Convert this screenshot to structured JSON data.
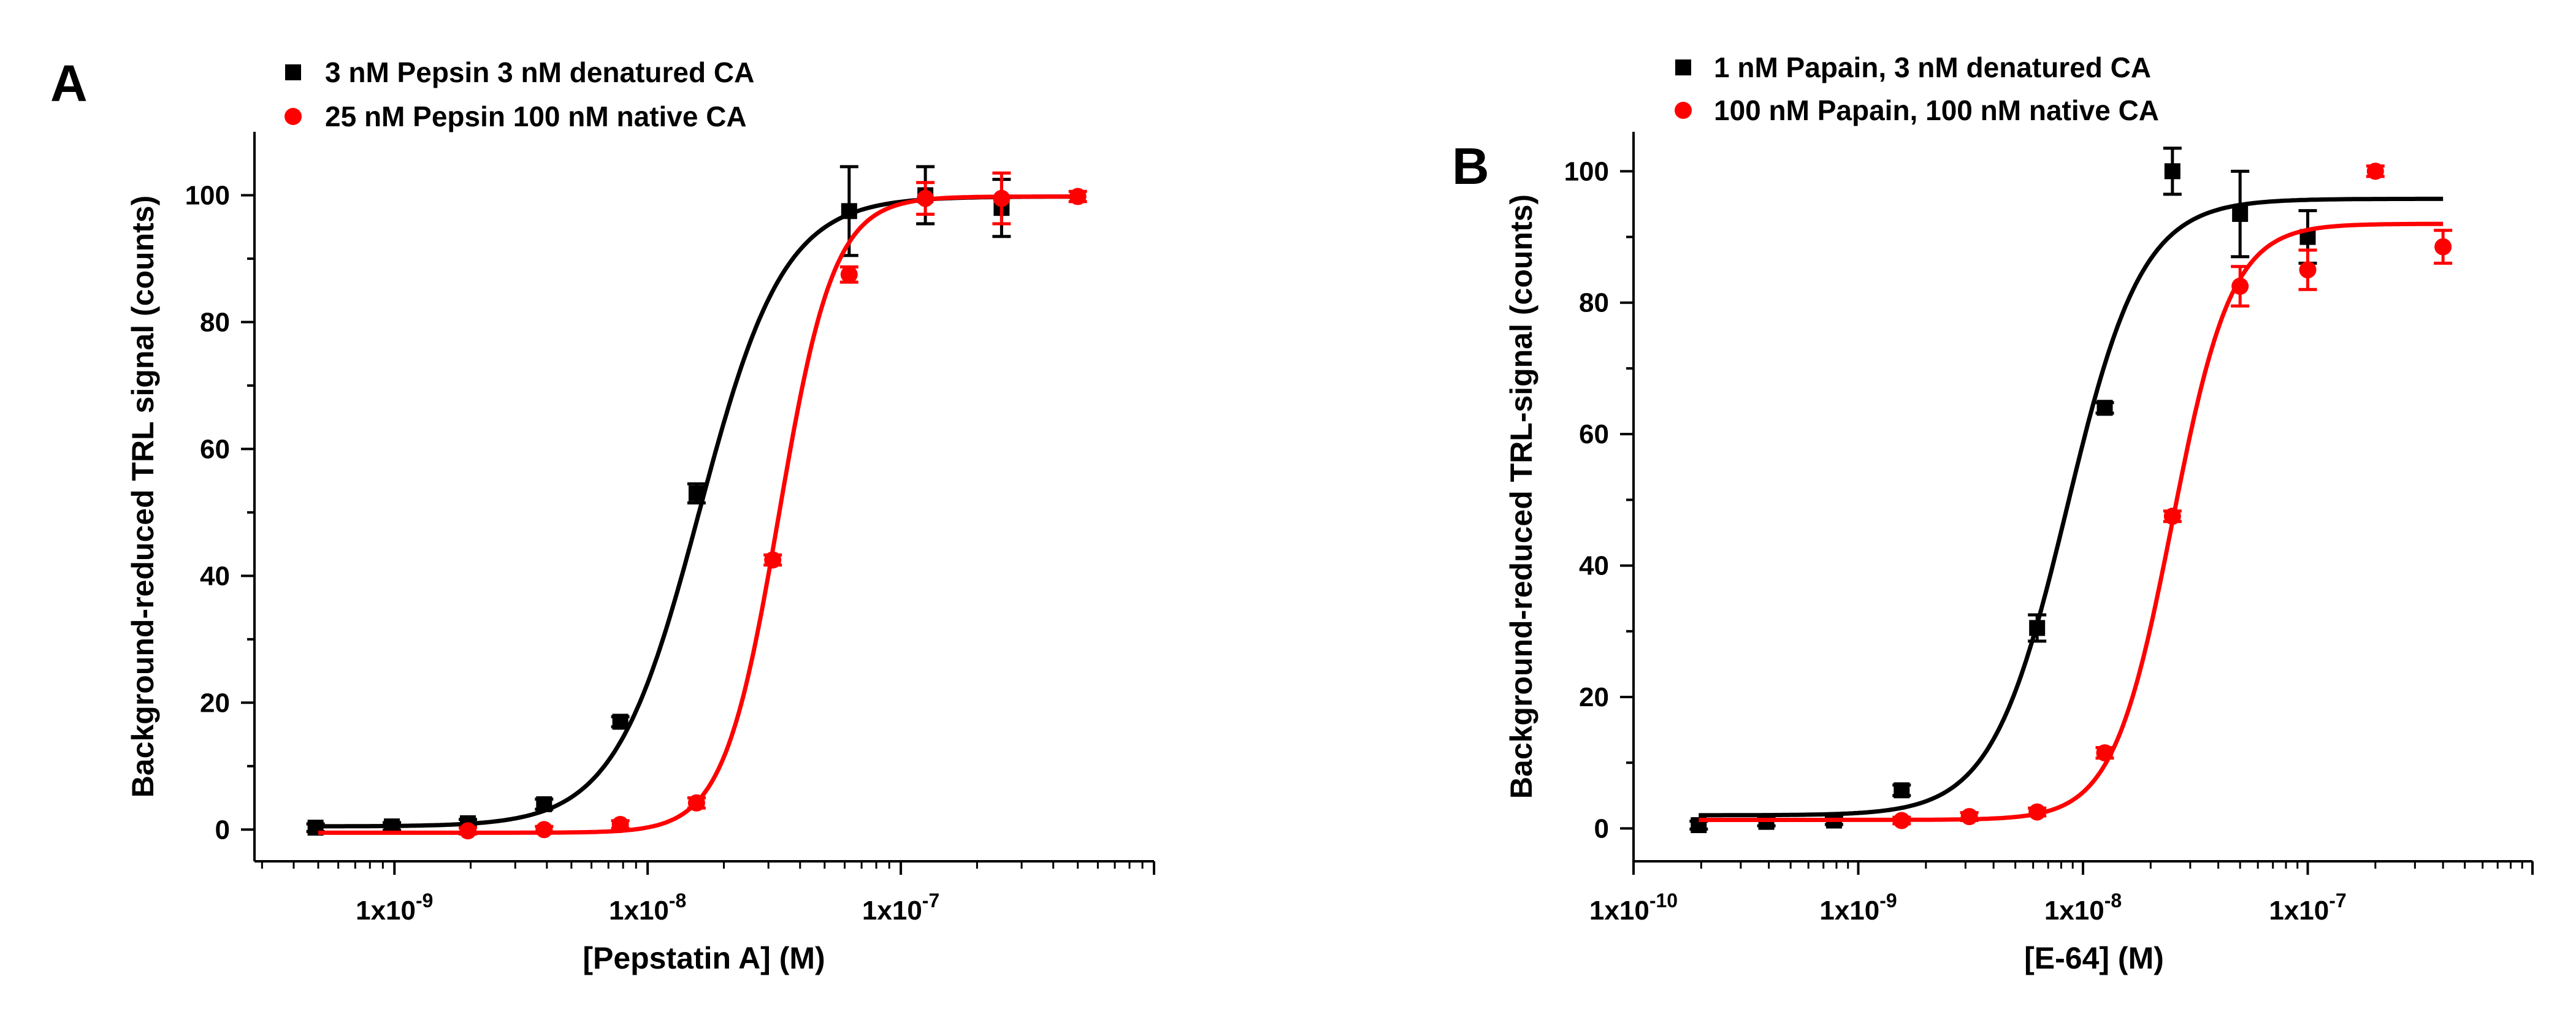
{
  "chart_data": [
    {
      "type": "scatter",
      "panel_label": "A",
      "xlabel": "[Pepstatin A] (M)",
      "ylabel": "Background-reduced TRL signal (counts)",
      "xscale": "log",
      "xlim": [
        2.8e-10,
        1e-06
      ],
      "ylim": [
        -5,
        110
      ],
      "xticks": [
        1e-09,
        1e-08,
        1e-07
      ],
      "xtick_labels": [
        "1x10-9",
        "1x10-8",
        "1x10-7"
      ],
      "yticks": [
        0,
        20,
        40,
        60,
        80,
        100
      ],
      "ytick_labels": [
        "0",
        "20",
        "40",
        "60",
        "80",
        "100"
      ],
      "legend_position": "top-left",
      "series": [
        {
          "name": "3 nM Pepsin 3 nM denatured CA",
          "color": "#000000",
          "marker": "square",
          "x": [
            4.88e-10,
            9.77e-10,
            1.95e-09,
            3.9e-09,
            7.8e-09,
            1.56e-08,
            6.25e-08,
            1.25e-07,
            2.5e-07
          ],
          "y": [
            0.3,
            0.5,
            1.0,
            4.0,
            17.0,
            53.0,
            97.5,
            100.0,
            98.0
          ],
          "err": [
            0.6,
            0.6,
            0.6,
            0.8,
            0.8,
            1.5,
            7.0,
            4.5,
            4.5
          ],
          "fit": {
            "bottom": 0.5,
            "top": 99.8,
            "ec50": 1.6e-08,
            "hill": 2.6
          }
        },
        {
          "name": "25 nM Pepsin 100 nM native CA",
          "color": "#ff0000",
          "marker": "circle",
          "x": [
            1.95e-09,
            3.9e-09,
            7.8e-09,
            1.56e-08,
            3.12e-08,
            6.25e-08,
            1.25e-07,
            2.5e-07,
            5e-07
          ],
          "y": [
            -0.2,
            0.0,
            0.8,
            4.2,
            42.5,
            87.5,
            99.5,
            99.5,
            99.8
          ],
          "err": [
            0.5,
            0.5,
            0.6,
            0.8,
            0.8,
            1.2,
            2.5,
            4.0,
            0.8
          ],
          "fit": {
            "bottom": -0.5,
            "top": 99.8,
            "ec50": 3.3e-08,
            "hill": 4.0
          }
        }
      ]
    },
    {
      "type": "scatter",
      "panel_label": "B",
      "xlabel": "[E-64] (M)",
      "ylabel": "Background-reduced TRL-signal (counts)",
      "xscale": "log",
      "xlim": [
        1e-10,
        1e-06
      ],
      "ylim": [
        -5,
        106
      ],
      "xticks": [
        1e-10,
        1e-09,
        1e-08,
        1e-07
      ],
      "xtick_labels": [
        "1x10-10",
        "1x10-9",
        "1x10-8",
        "1x10-7"
      ],
      "yticks": [
        0,
        20,
        40,
        60,
        80,
        100
      ],
      "ytick_labels": [
        "0",
        "20",
        "40",
        "60",
        "80",
        "100"
      ],
      "legend_position": "top-left",
      "series": [
        {
          "name": "1 nM Papain, 3 nM denatured CA",
          "color": "#000000",
          "marker": "square",
          "x": [
            1.95e-10,
            3.9e-10,
            7.8e-10,
            1.56e-09,
            6.25e-09,
            1.25e-08,
            2.5e-08,
            5e-08,
            1e-07
          ],
          "y": [
            0.5,
            1.0,
            1.2,
            5.8,
            30.5,
            64.0,
            100.0,
            93.5,
            90.0
          ],
          "err": [
            0.6,
            0.6,
            0.6,
            0.8,
            2.0,
            0.8,
            3.5,
            6.5,
            4.0
          ],
          "fit": {
            "bottom": 2.0,
            "top": 95.8,
            "ec50": 8.5e-09,
            "hill": 2.6
          }
        },
        {
          "name": "100 nM Papain, 100 nM native CA",
          "color": "#ff0000",
          "marker": "circle",
          "x": [
            1.56e-09,
            3.12e-09,
            6.25e-09,
            1.25e-08,
            2.5e-08,
            5e-08,
            1e-07,
            2e-07,
            4e-07
          ],
          "y": [
            1.2,
            1.8,
            2.5,
            11.5,
            47.5,
            82.5,
            85.0,
            100.0,
            88.5
          ],
          "err": [
            0.5,
            0.6,
            0.6,
            0.8,
            0.8,
            3.0,
            3.0,
            0.8,
            2.5
          ],
          "fit": {
            "bottom": 1.3,
            "top": 92.0,
            "ec50": 2.5e-08,
            "hill": 3.3
          }
        }
      ]
    }
  ]
}
